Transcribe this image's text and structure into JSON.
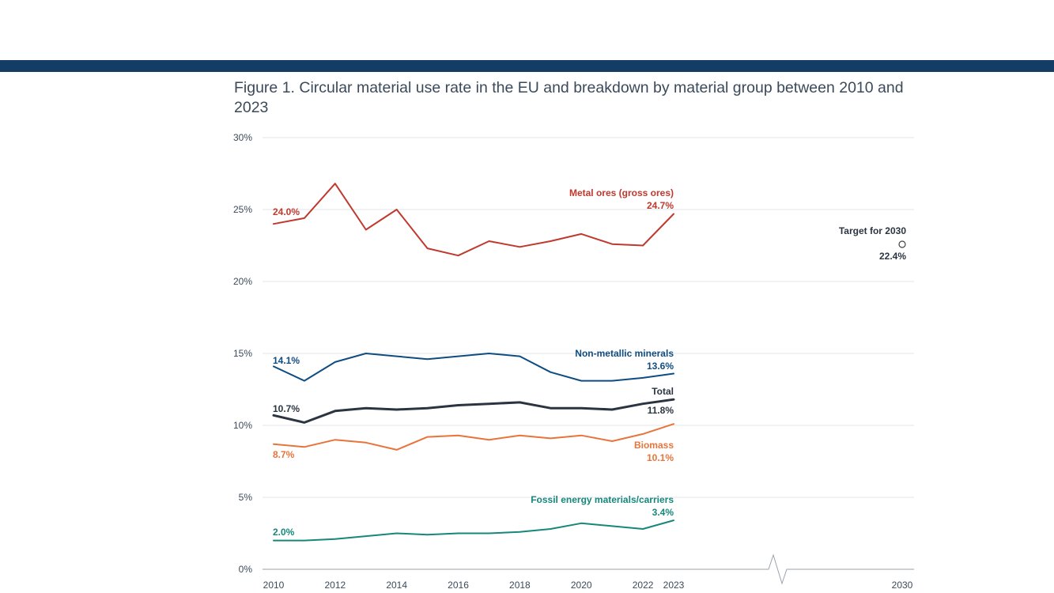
{
  "colors": {
    "band": "#143d65",
    "metal": "#c0392f",
    "nonmetal": "#0f4c81",
    "total": "#2b3542",
    "biomass": "#e8743b",
    "fossil": "#16877a",
    "grid": "#e3e6ea",
    "axis": "#9aa3ad",
    "target_marker": "#444444"
  },
  "figure": {
    "title": "Figure 1. Circular material use rate in the EU and breakdown by material group between 2010 and 2023"
  },
  "chart_data": {
    "type": "line",
    "title": "Figure 1. Circular material use rate in the EU and breakdown by material group between 2010 and 2023",
    "xlabel": "",
    "ylabel": "",
    "ylim": [
      0,
      30
    ],
    "y_ticks": [
      0,
      5,
      10,
      15,
      20,
      25,
      30
    ],
    "y_tick_labels": [
      "0%",
      "5%",
      "10%",
      "15%",
      "20%",
      "25%",
      "30%"
    ],
    "x_tick_labels": [
      "2010",
      "2012",
      "2014",
      "2016",
      "2018",
      "2020",
      "2022",
      "2023",
      "2030"
    ],
    "grid": true,
    "axis_break": "between 2023 and 2030",
    "x": [
      2010,
      2011,
      2012,
      2013,
      2014,
      2015,
      2016,
      2017,
      2018,
      2019,
      2020,
      2021,
      2022,
      2023
    ],
    "series": [
      {
        "name": "Metal ores (gross ores)",
        "color_key": "metal",
        "values": [
          24.0,
          24.4,
          26.8,
          23.6,
          25.0,
          22.3,
          21.8,
          22.8,
          22.4,
          22.8,
          23.3,
          22.6,
          22.5,
          24.7
        ],
        "start_label": "24.0%",
        "end_label": "24.7%"
      },
      {
        "name": "Non-metallic minerals",
        "color_key": "nonmetal",
        "values": [
          14.1,
          13.1,
          14.4,
          15.0,
          14.8,
          14.6,
          14.8,
          15.0,
          14.8,
          13.7,
          13.1,
          13.1,
          13.3,
          13.6
        ],
        "start_label": "14.1%",
        "end_label": "13.6%"
      },
      {
        "name": "Total",
        "color_key": "total",
        "values": [
          10.7,
          10.2,
          11.0,
          11.2,
          11.1,
          11.2,
          11.4,
          11.5,
          11.6,
          11.2,
          11.2,
          11.1,
          11.5,
          11.8
        ],
        "start_label": "10.7%",
        "end_label": "11.8%"
      },
      {
        "name": "Biomass",
        "color_key": "biomass",
        "values": [
          8.7,
          8.5,
          9.0,
          8.8,
          8.3,
          9.2,
          9.3,
          9.0,
          9.3,
          9.1,
          9.3,
          8.9,
          9.4,
          10.1
        ],
        "start_label": "8.7%",
        "end_label": "10.1%"
      },
      {
        "name": "Fossil energy materials/carriers",
        "color_key": "fossil",
        "values": [
          2.0,
          2.0,
          2.1,
          2.3,
          2.5,
          2.4,
          2.5,
          2.5,
          2.6,
          2.8,
          3.2,
          3.0,
          2.8,
          3.4
        ],
        "start_label": "2.0%",
        "end_label": "3.4%"
      }
    ],
    "target": {
      "label": "Target for 2030",
      "year": 2030,
      "value": 22.4,
      "value_label": "22.4%"
    }
  }
}
